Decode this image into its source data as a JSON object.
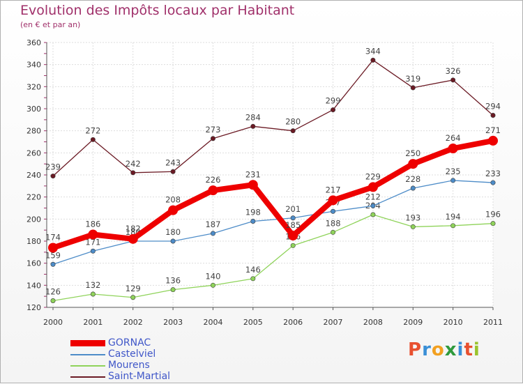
{
  "title": "Evolution des Impôts locaux par Habitant",
  "subtitle": "(en € et par an)",
  "logo": {
    "letters": [
      "P",
      "r",
      "o",
      "x",
      "i",
      "t",
      "i"
    ],
    "colors": [
      "#e8502f",
      "#3a8fd6",
      "#f2a020",
      "#2f9a3c",
      "#3a8fd6",
      "#e8502f",
      "#9ac32e"
    ]
  },
  "chart_data": {
    "type": "line",
    "title": "Evolution des Impôts locaux par Habitant",
    "subtitle": "(en € et par an)",
    "xlabel": "",
    "ylabel": "",
    "categories": [
      "2000",
      "2001",
      "2002",
      "2003",
      "2004",
      "2005",
      "2006",
      "2007",
      "2008",
      "2009",
      "2010",
      "2011"
    ],
    "ylim": [
      120,
      360
    ],
    "yticks": [
      120,
      140,
      160,
      180,
      200,
      220,
      240,
      260,
      280,
      300,
      320,
      340,
      360
    ],
    "grid": true,
    "legend_position": "bottom-left",
    "series": [
      {
        "name": "Saint-Martial",
        "color": "#6b1a24",
        "emphasis": false,
        "values": [
          239,
          272,
          242,
          243,
          273,
          284,
          280,
          299,
          344,
          319,
          326,
          294
        ]
      },
      {
        "name": "Mourens",
        "color": "#8fd35a",
        "emphasis": false,
        "values": [
          126,
          132,
          129,
          136,
          140,
          146,
          176,
          188,
          204,
          193,
          194,
          196
        ]
      },
      {
        "name": "Castelviel",
        "color": "#4d8cc8",
        "emphasis": false,
        "values": [
          159,
          171,
          180,
          180,
          187,
          198,
          201,
          207,
          212,
          228,
          235,
          233
        ]
      },
      {
        "name": "GORNAC",
        "color": "#ee0000",
        "emphasis": true,
        "values": [
          174,
          186,
          182,
          208,
          226,
          231,
          185,
          217,
          229,
          250,
          264,
          271
        ]
      }
    ],
    "visible_point_labels": {
      "Saint-Martial": [
        "239",
        "272",
        "242",
        "243",
        "273",
        "284",
        "280",
        "299",
        "344",
        "319",
        "326",
        "294"
      ],
      "Mourens": [
        "126",
        "132",
        "129",
        "136",
        "140",
        "146",
        "176",
        "188",
        "204",
        "193",
        "194",
        "196"
      ],
      "Castelviel": [
        "159",
        "171",
        "180",
        "180",
        "187",
        "198",
        "201",
        "207",
        "212",
        "228",
        "235",
        "233"
      ],
      "GORNAC": [
        "174",
        "186",
        "182",
        "208",
        "226",
        "231",
        "185",
        "217",
        "229",
        "250",
        "264",
        "271"
      ]
    }
  },
  "legend": [
    {
      "label": "GORNAC",
      "color": "#ee0000",
      "emphasis": true
    },
    {
      "label": "Castelviel",
      "color": "#4d8cc8",
      "emphasis": false
    },
    {
      "label": "Mourens",
      "color": "#8fd35a",
      "emphasis": false
    },
    {
      "label": "Saint-Martial",
      "color": "#6b1a24",
      "emphasis": false
    }
  ]
}
